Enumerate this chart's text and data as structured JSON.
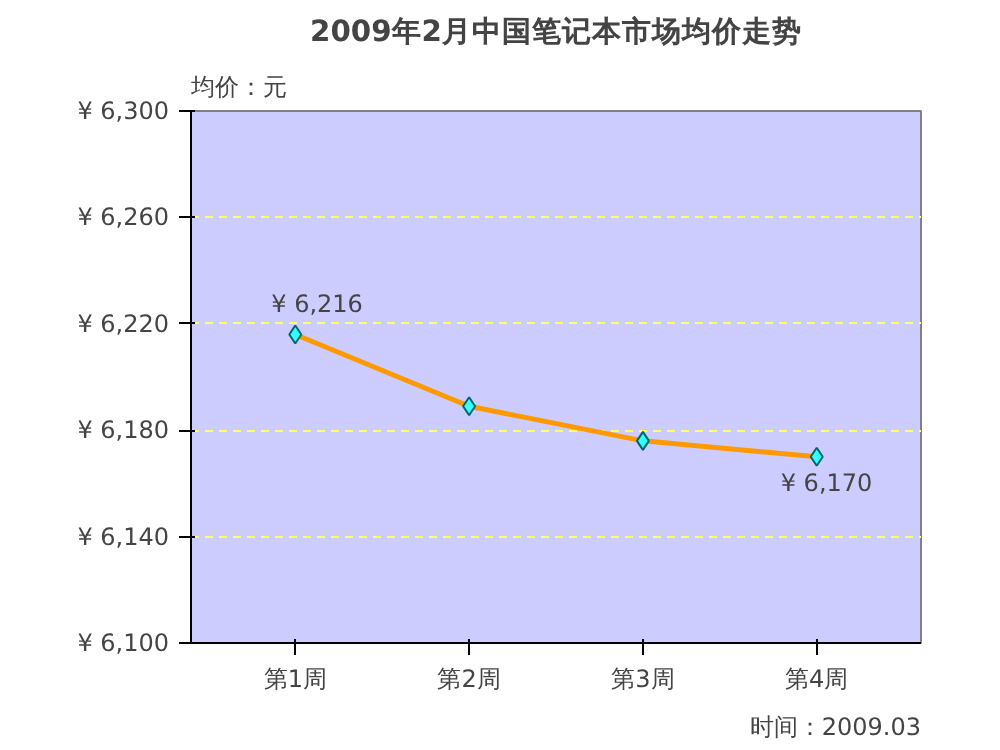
{
  "chart_data": {
    "type": "line",
    "title": "2009年2月中国笔记本市场均价走势",
    "ylabel": "均价：元",
    "categories": [
      "第1周",
      "第2周",
      "第3周",
      "第4周"
    ],
    "series": [
      {
        "color": "#ff9900",
        "values": [
          6216,
          6189,
          6176,
          6170
        ],
        "value_labels": [
          "¥ 6,216",
          null,
          null,
          "¥ 6,170"
        ]
      }
    ],
    "ylim": [
      6100,
      6300
    ],
    "yticks": [
      {
        "value": 6100,
        "label": "¥ 6,100"
      },
      {
        "value": 6140,
        "label": "¥ 6,140"
      },
      {
        "value": 6180,
        "label": "¥ 6,180"
      },
      {
        "value": 6220,
        "label": "¥ 6,220"
      },
      {
        "value": 6260,
        "label": "¥ 6,260"
      },
      {
        "value": 6300,
        "label": "¥ 6,300"
      }
    ],
    "grid": "y",
    "marker": "diamond",
    "line_style": "solid",
    "annotations": [
      "时间：2009.03"
    ]
  }
}
